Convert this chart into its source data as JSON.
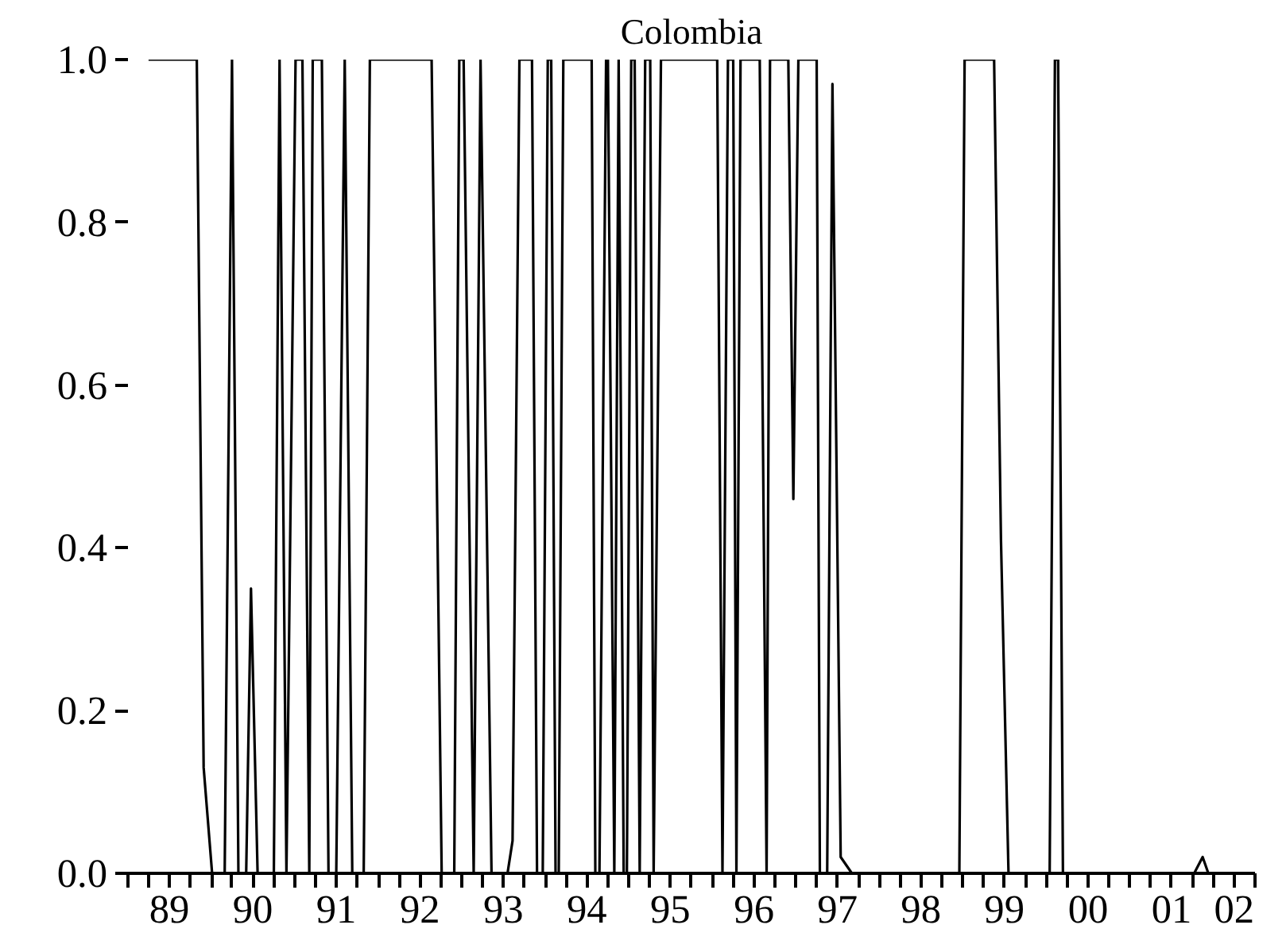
{
  "chart_data": {
    "type": "line",
    "title": "Colombia",
    "x": [
      "1989-04-01",
      "1989-10-29",
      "1989-11-28",
      "1990-01-04",
      "1990-02-28",
      "1990-04-01",
      "1990-04-29",
      "1990-06-02",
      "1990-06-23",
      "1990-07-22",
      "1990-10-01",
      "1990-10-26",
      "1990-11-25",
      "1991-01-04",
      "1991-02-03",
      "1991-03-05",
      "1991-03-20",
      "1991-04-29",
      "1991-05-28",
      "1991-07-01",
      "1991-08-07",
      "1991-09-09",
      "1991-10-29",
      "1991-11-25",
      "1992-08-21",
      "1992-10-04",
      "1992-11-28",
      "1992-12-20",
      "1993-01-08",
      "1993-02-21",
      "1993-03-23",
      "1993-05-10",
      "1993-07-19",
      "1993-08-10",
      "1993-09-09",
      "1993-11-03",
      "1993-11-25",
      "1993-12-20",
      "1994-01-11",
      "1994-01-26",
      "1994-02-14",
      "1994-02-28",
      "1994-03-20",
      "1994-07-22",
      "1994-08-07",
      "1994-08-25",
      "1994-09-23",
      "1994-10-01",
      "1994-10-29",
      "1994-11-17",
      "1994-12-09",
      "1994-12-23",
      "1995-01-11",
      "1995-01-26",
      "1995-02-17",
      "1995-03-13",
      "1995-04-04",
      "1995-04-19",
      "1995-05-21",
      "1996-01-22",
      "1996-02-14",
      "1996-03-09",
      "1996-04-01",
      "1996-04-15",
      "1996-05-03",
      "1996-07-26",
      "1996-08-25",
      "1996-09-09",
      "1996-11-28",
      "1996-12-20",
      "1997-01-11",
      "1997-04-01",
      "1997-04-15",
      "1997-05-17",
      "1997-06-09",
      "1997-07-15",
      "1997-09-02",
      "1998-12-16",
      "1999-01-08",
      "1999-05-17",
      "1999-06-16",
      "1999-07-19",
      "2000-01-15",
      "2000-02-07",
      "2000-02-21",
      "2000-03-13",
      "2001-10-08",
      "2001-11-14",
      "2001-12-09",
      "2002-06-13"
    ],
    "series": [
      {
        "color": "#000000",
        "values": [
          1,
          1,
          0.13,
          0,
          0,
          1,
          0,
          0,
          0.35,
          0,
          0,
          1,
          0,
          1,
          1,
          0,
          1,
          1,
          0,
          0,
          1,
          0,
          0,
          1,
          1,
          0,
          0,
          1,
          1,
          0,
          1,
          0,
          0,
          0.04,
          1,
          1,
          0,
          0,
          1,
          1,
          0,
          0,
          1,
          1,
          0,
          0,
          1,
          1,
          0,
          1,
          0,
          0,
          1,
          1,
          0,
          1,
          1,
          0,
          1,
          1,
          0,
          1,
          1,
          0,
          1,
          1,
          0,
          1,
          1,
          0.46,
          1,
          1,
          0,
          0,
          0.97,
          0.02,
          0,
          0,
          1,
          1,
          0.41,
          0,
          0,
          1,
          1,
          0,
          0,
          0.02,
          0,
          0
        ]
      }
    ],
    "xlim": [
      "1989-01-01",
      "2002-07-01"
    ],
    "xticks": [
      {
        "value": "1989-01-01",
        "label": null
      },
      {
        "value": "1989-04-01",
        "label": null
      },
      {
        "value": "1989-07-01",
        "label": "89"
      },
      {
        "value": "1989-10-01",
        "label": null
      },
      {
        "value": "1990-01-01",
        "label": null
      },
      {
        "value": "1990-04-01",
        "label": null
      },
      {
        "value": "1990-07-01",
        "label": "90"
      },
      {
        "value": "1990-10-01",
        "label": null
      },
      {
        "value": "1991-01-01",
        "label": null
      },
      {
        "value": "1991-04-01",
        "label": null
      },
      {
        "value": "1991-07-01",
        "label": "91"
      },
      {
        "value": "1991-10-01",
        "label": null
      },
      {
        "value": "1992-01-01",
        "label": null
      },
      {
        "value": "1992-04-01",
        "label": null
      },
      {
        "value": "1992-07-01",
        "label": "92"
      },
      {
        "value": "1992-10-01",
        "label": null
      },
      {
        "value": "1993-01-01",
        "label": null
      },
      {
        "value": "1993-04-01",
        "label": null
      },
      {
        "value": "1993-07-01",
        "label": "93"
      },
      {
        "value": "1993-10-01",
        "label": null
      },
      {
        "value": "1994-01-01",
        "label": null
      },
      {
        "value": "1994-04-01",
        "label": null
      },
      {
        "value": "1994-07-01",
        "label": "94"
      },
      {
        "value": "1994-10-01",
        "label": null
      },
      {
        "value": "1995-01-01",
        "label": null
      },
      {
        "value": "1995-04-01",
        "label": null
      },
      {
        "value": "1995-07-01",
        "label": "95"
      },
      {
        "value": "1995-10-01",
        "label": null
      },
      {
        "value": "1996-01-01",
        "label": null
      },
      {
        "value": "1996-04-01",
        "label": null
      },
      {
        "value": "1996-07-01",
        "label": "96"
      },
      {
        "value": "1996-10-01",
        "label": null
      },
      {
        "value": "1997-01-01",
        "label": null
      },
      {
        "value": "1997-04-01",
        "label": null
      },
      {
        "value": "1997-07-01",
        "label": "97"
      },
      {
        "value": "1997-10-01",
        "label": null
      },
      {
        "value": "1998-01-01",
        "label": null
      },
      {
        "value": "1998-04-01",
        "label": null
      },
      {
        "value": "1998-07-01",
        "label": "98"
      },
      {
        "value": "1998-10-01",
        "label": null
      },
      {
        "value": "1999-01-01",
        "label": null
      },
      {
        "value": "1999-04-01",
        "label": null
      },
      {
        "value": "1999-07-01",
        "label": "99"
      },
      {
        "value": "1999-10-01",
        "label": null
      },
      {
        "value": "2000-01-01",
        "label": null
      },
      {
        "value": "2000-04-01",
        "label": null
      },
      {
        "value": "2000-07-01",
        "label": "00"
      },
      {
        "value": "2000-10-01",
        "label": null
      },
      {
        "value": "2001-01-01",
        "label": null
      },
      {
        "value": "2001-04-01",
        "label": null
      },
      {
        "value": "2001-07-01",
        "label": "01"
      },
      {
        "value": "2001-10-01",
        "label": null
      },
      {
        "value": "2002-01-01",
        "label": null
      },
      {
        "value": "2002-04-01",
        "label": "02"
      },
      {
        "value": "2002-07-01",
        "label": null
      }
    ],
    "ylim": [
      0,
      1
    ],
    "yticks": [
      {
        "value": 0,
        "label": "0.0"
      },
      {
        "value": 0.2,
        "label": "0.2"
      },
      {
        "value": 0.4,
        "label": "0.4"
      },
      {
        "value": 0.6,
        "label": "0.6"
      },
      {
        "value": 0.8,
        "label": "0.8"
      },
      {
        "value": 1,
        "label": "1.0"
      }
    ],
    "marker": "none",
    "line_style": "solid"
  }
}
